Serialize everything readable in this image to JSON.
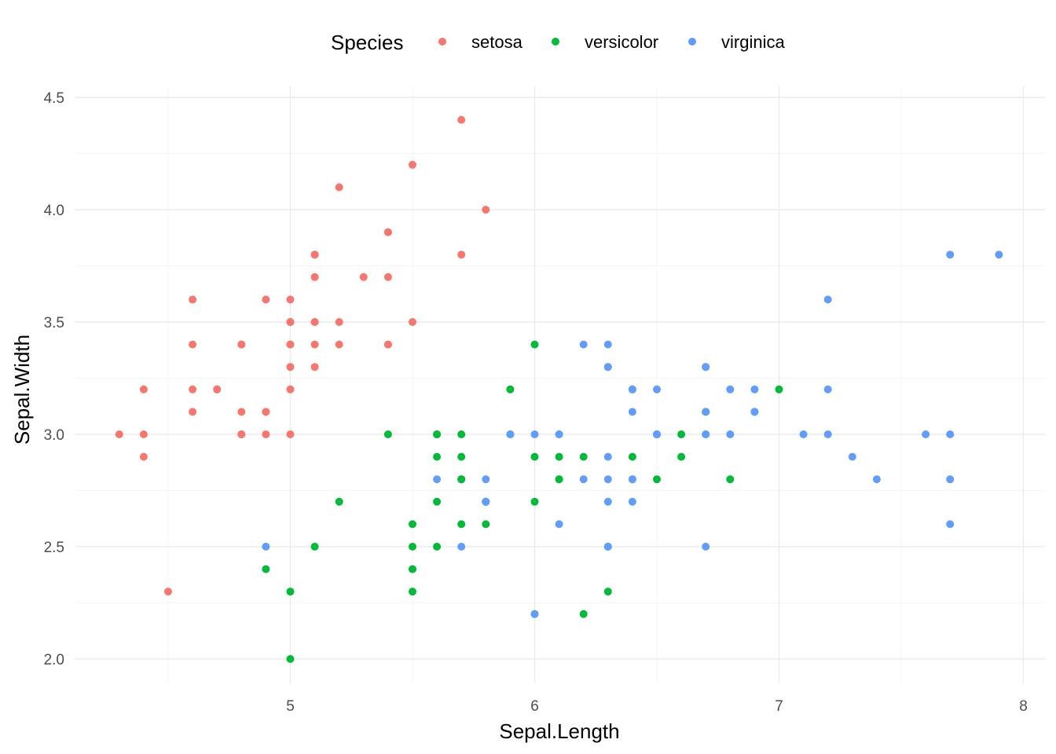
{
  "chart_data": {
    "type": "scatter",
    "xlabel": "Sepal.Length",
    "ylabel": "Sepal.Width",
    "xlim": [
      4.18,
      8.02
    ],
    "ylim": [
      1.88,
      4.52
    ],
    "x_ticks": [
      5,
      6,
      7,
      8
    ],
    "y_ticks": [
      "2.0",
      "2.5",
      "3.0",
      "3.5",
      "4.0",
      "4.5"
    ],
    "grid": true,
    "legend": {
      "title": "Species",
      "position": "top"
    },
    "series": [
      {
        "name": "setosa",
        "color": "#F8766D",
        "points": [
          [
            5.1,
            3.5
          ],
          [
            4.9,
            3.0
          ],
          [
            4.7,
            3.2
          ],
          [
            4.6,
            3.1
          ],
          [
            5.0,
            3.6
          ],
          [
            5.4,
            3.9
          ],
          [
            4.6,
            3.4
          ],
          [
            5.0,
            3.4
          ],
          [
            4.4,
            2.9
          ],
          [
            4.9,
            3.1
          ],
          [
            5.4,
            3.7
          ],
          [
            4.8,
            3.4
          ],
          [
            4.8,
            3.0
          ],
          [
            4.3,
            3.0
          ],
          [
            5.8,
            4.0
          ],
          [
            5.7,
            4.4
          ],
          [
            5.4,
            3.9
          ],
          [
            5.1,
            3.5
          ],
          [
            5.7,
            3.8
          ],
          [
            5.1,
            3.8
          ],
          [
            5.4,
            3.4
          ],
          [
            5.1,
            3.7
          ],
          [
            4.6,
            3.6
          ],
          [
            5.1,
            3.3
          ],
          [
            4.8,
            3.4
          ],
          [
            5.0,
            3.0
          ],
          [
            5.0,
            3.4
          ],
          [
            5.2,
            3.5
          ],
          [
            5.2,
            3.4
          ],
          [
            4.7,
            3.2
          ],
          [
            4.8,
            3.1
          ],
          [
            5.4,
            3.4
          ],
          [
            5.2,
            4.1
          ],
          [
            5.5,
            4.2
          ],
          [
            4.9,
            3.1
          ],
          [
            5.0,
            3.2
          ],
          [
            5.5,
            3.5
          ],
          [
            4.9,
            3.6
          ],
          [
            4.4,
            3.0
          ],
          [
            5.1,
            3.4
          ],
          [
            5.0,
            3.5
          ],
          [
            4.5,
            2.3
          ],
          [
            4.4,
            3.2
          ],
          [
            5.0,
            3.5
          ],
          [
            5.1,
            3.8
          ],
          [
            4.8,
            3.0
          ],
          [
            5.1,
            3.8
          ],
          [
            4.6,
            3.2
          ],
          [
            5.3,
            3.7
          ],
          [
            5.0,
            3.3
          ]
        ]
      },
      {
        "name": "versicolor",
        "color": "#00BA38",
        "points": [
          [
            7.0,
            3.2
          ],
          [
            6.4,
            3.2
          ],
          [
            6.9,
            3.1
          ],
          [
            5.5,
            2.3
          ],
          [
            6.5,
            2.8
          ],
          [
            5.7,
            2.8
          ],
          [
            6.3,
            3.3
          ],
          [
            4.9,
            2.4
          ],
          [
            6.6,
            2.9
          ],
          [
            5.2,
            2.7
          ],
          [
            5.0,
            2.0
          ],
          [
            5.9,
            3.0
          ],
          [
            6.0,
            2.2
          ],
          [
            6.1,
            2.9
          ],
          [
            5.6,
            2.9
          ],
          [
            6.7,
            3.1
          ],
          [
            5.6,
            3.0
          ],
          [
            5.8,
            2.7
          ],
          [
            6.2,
            2.2
          ],
          [
            5.6,
            2.5
          ],
          [
            5.9,
            3.2
          ],
          [
            6.1,
            2.8
          ],
          [
            6.3,
            2.5
          ],
          [
            6.1,
            2.8
          ],
          [
            6.4,
            2.9
          ],
          [
            6.6,
            3.0
          ],
          [
            6.8,
            2.8
          ],
          [
            6.7,
            3.0
          ],
          [
            6.0,
            2.9
          ],
          [
            5.7,
            2.6
          ],
          [
            5.5,
            2.4
          ],
          [
            5.5,
            2.4
          ],
          [
            5.8,
            2.7
          ],
          [
            6.0,
            2.7
          ],
          [
            5.4,
            3.0
          ],
          [
            6.0,
            3.4
          ],
          [
            6.7,
            3.1
          ],
          [
            6.3,
            2.3
          ],
          [
            5.6,
            3.0
          ],
          [
            5.5,
            2.5
          ],
          [
            5.5,
            2.6
          ],
          [
            6.1,
            3.0
          ],
          [
            5.8,
            2.6
          ],
          [
            5.0,
            2.3
          ],
          [
            5.6,
            2.7
          ],
          [
            5.7,
            3.0
          ],
          [
            5.7,
            2.9
          ],
          [
            6.2,
            2.9
          ],
          [
            5.1,
            2.5
          ],
          [
            5.7,
            2.8
          ]
        ]
      },
      {
        "name": "virginica",
        "color": "#619CFF",
        "points": [
          [
            6.3,
            3.3
          ],
          [
            5.8,
            2.7
          ],
          [
            7.1,
            3.0
          ],
          [
            6.3,
            2.9
          ],
          [
            6.5,
            3.0
          ],
          [
            7.6,
            3.0
          ],
          [
            4.9,
            2.5
          ],
          [
            7.3,
            2.9
          ],
          [
            6.7,
            2.5
          ],
          [
            7.2,
            3.6
          ],
          [
            6.5,
            3.2
          ],
          [
            6.4,
            2.7
          ],
          [
            6.8,
            3.0
          ],
          [
            5.7,
            2.5
          ],
          [
            5.8,
            2.8
          ],
          [
            6.4,
            3.2
          ],
          [
            6.5,
            3.0
          ],
          [
            7.7,
            3.8
          ],
          [
            7.7,
            2.6
          ],
          [
            6.0,
            2.2
          ],
          [
            6.9,
            3.2
          ],
          [
            5.6,
            2.8
          ],
          [
            7.7,
            2.8
          ],
          [
            6.3,
            2.7
          ],
          [
            6.7,
            3.3
          ],
          [
            7.2,
            3.2
          ],
          [
            6.2,
            2.8
          ],
          [
            6.1,
            3.0
          ],
          [
            6.4,
            2.8
          ],
          [
            7.2,
            3.0
          ],
          [
            7.4,
            2.8
          ],
          [
            7.9,
            3.8
          ],
          [
            6.4,
            2.8
          ],
          [
            6.3,
            2.8
          ],
          [
            6.1,
            2.6
          ],
          [
            7.7,
            3.0
          ],
          [
            6.3,
            3.4
          ],
          [
            6.4,
            3.1
          ],
          [
            6.0,
            3.0
          ],
          [
            6.9,
            3.1
          ],
          [
            6.7,
            3.1
          ],
          [
            6.9,
            3.1
          ],
          [
            5.8,
            2.7
          ],
          [
            6.8,
            3.2
          ],
          [
            6.7,
            3.3
          ],
          [
            6.7,
            3.0
          ],
          [
            6.3,
            2.5
          ],
          [
            6.5,
            3.0
          ],
          [
            6.2,
            3.4
          ],
          [
            5.9,
            3.0
          ]
        ]
      }
    ]
  }
}
